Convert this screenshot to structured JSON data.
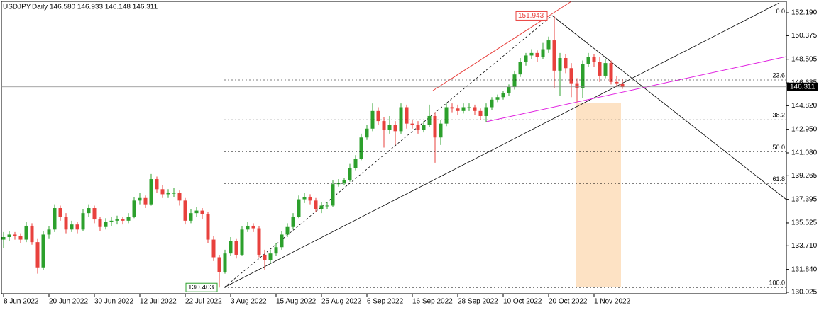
{
  "chart_data": {
    "type": "candlestick",
    "title": "USDJPY,Daily  146.580 146.933 146.148 146.311",
    "categories": [
      "8 Jun 2022",
      null,
      null,
      null,
      null,
      null,
      null,
      null,
      "20 Jun 2022",
      null,
      null,
      null,
      null,
      null,
      null,
      null,
      "30 Jun 2022",
      null,
      null,
      null,
      null,
      null,
      null,
      null,
      "12 Jul 2022",
      null,
      null,
      null,
      null,
      null,
      null,
      null,
      "22 Jul 2022",
      null,
      null,
      null,
      null,
      null,
      null,
      null,
      "3 Aug 2022",
      null,
      null,
      null,
      null,
      null,
      null,
      null,
      "15 Aug 2022",
      null,
      null,
      null,
      null,
      null,
      null,
      null,
      "25 Aug 2022",
      null,
      null,
      null,
      null,
      null,
      null,
      null,
      "6 Sep 2022",
      null,
      null,
      null,
      null,
      null,
      null,
      null,
      "16 Sep 2022",
      null,
      null,
      null,
      null,
      null,
      null,
      null,
      "28 Sep 2022",
      null,
      null,
      null,
      null,
      null,
      null,
      null,
      "10 Oct 2022",
      null,
      null,
      null,
      null,
      null,
      null,
      null,
      "20 Oct 2022",
      null,
      null,
      null,
      null,
      null,
      null,
      null,
      "1 Nov 2022",
      null,
      null,
      null,
      null,
      null
    ],
    "candles": [
      [
        134.2,
        134.8,
        133.5,
        134.4
      ],
      [
        134.4,
        134.9,
        134.1,
        134.6
      ],
      [
        134.6,
        134.8,
        134.2,
        134.5
      ],
      [
        134.5,
        134.7,
        133.9,
        134.2
      ],
      [
        134.2,
        135.6,
        134.0,
        135.3
      ],
      [
        135.3,
        135.5,
        133.8,
        134.0
      ],
      [
        134.0,
        134.3,
        131.5,
        132.0
      ],
      [
        132.0,
        134.9,
        131.8,
        134.6
      ],
      [
        134.6,
        135.3,
        134.3,
        135.0
      ],
      [
        135.0,
        137.0,
        134.8,
        136.7
      ],
      [
        136.7,
        136.9,
        135.7,
        136.0
      ],
      [
        136.0,
        136.3,
        134.7,
        135.0
      ],
      [
        135.0,
        135.7,
        134.8,
        135.4
      ],
      [
        135.4,
        135.6,
        134.7,
        135.0
      ],
      [
        135.0,
        136.6,
        134.9,
        136.3
      ],
      [
        136.3,
        137.0,
        136.0,
        136.7
      ],
      [
        136.7,
        136.9,
        135.5,
        135.8
      ],
      [
        135.8,
        136.0,
        134.9,
        135.2
      ],
      [
        135.2,
        135.9,
        135.0,
        135.6
      ],
      [
        135.6,
        136.0,
        135.3,
        135.7
      ],
      [
        135.7,
        136.1,
        135.4,
        135.8
      ],
      [
        135.8,
        136.0,
        135.4,
        135.7
      ],
      [
        135.7,
        136.3,
        135.5,
        136.0
      ],
      [
        136.0,
        137.6,
        135.9,
        137.3
      ],
      [
        137.3,
        137.9,
        137.0,
        137.5
      ],
      [
        137.5,
        137.7,
        136.7,
        137.0
      ],
      [
        137.0,
        139.4,
        136.9,
        139.0
      ],
      [
        139.0,
        139.2,
        137.9,
        138.2
      ],
      [
        138.2,
        138.5,
        137.5,
        137.8
      ],
      [
        137.8,
        138.2,
        137.5,
        137.9
      ],
      [
        137.9,
        138.3,
        137.6,
        137.9
      ],
      [
        137.9,
        138.1,
        136.9,
        137.3
      ],
      [
        137.3,
        137.5,
        135.4,
        135.7
      ],
      [
        135.7,
        136.6,
        135.5,
        136.3
      ],
      [
        136.3,
        136.8,
        136.0,
        136.5
      ],
      [
        136.5,
        136.7,
        135.8,
        136.2
      ],
      [
        136.2,
        136.4,
        133.9,
        134.2
      ],
      [
        134.2,
        134.5,
        132.5,
        132.8
      ],
      [
        132.8,
        133.0,
        130.403,
        131.6
      ],
      [
        131.6,
        133.4,
        131.5,
        133.1
      ],
      [
        133.1,
        134.4,
        132.9,
        134.1
      ],
      [
        134.1,
        134.3,
        132.7,
        133.0
      ],
      [
        133.0,
        135.3,
        132.9,
        135.0
      ],
      [
        135.0,
        135.6,
        134.8,
        135.3
      ],
      [
        135.3,
        135.5,
        134.8,
        135.1
      ],
      [
        135.1,
        135.3,
        132.8,
        133.0
      ],
      [
        133.0,
        133.4,
        131.8,
        132.6
      ],
      [
        132.6,
        133.4,
        132.3,
        133.1
      ],
      [
        133.1,
        133.9,
        132.9,
        133.6
      ],
      [
        133.6,
        134.9,
        133.4,
        134.6
      ],
      [
        134.6,
        135.5,
        134.4,
        135.2
      ],
      [
        135.2,
        136.3,
        135.0,
        136.0
      ],
      [
        136.0,
        137.7,
        135.9,
        137.4
      ],
      [
        137.4,
        137.9,
        137.1,
        137.6
      ],
      [
        137.6,
        137.8,
        137.0,
        137.3
      ],
      [
        137.3,
        137.5,
        136.4,
        136.6
      ],
      [
        136.6,
        137.2,
        136.3,
        136.9
      ],
      [
        136.9,
        137.2,
        136.6,
        136.9
      ],
      [
        136.9,
        138.9,
        136.8,
        138.6
      ],
      [
        138.6,
        139.0,
        138.4,
        138.7
      ],
      [
        138.7,
        139.1,
        138.5,
        138.9
      ],
      [
        138.9,
        140.2,
        138.8,
        139.9
      ],
      [
        139.9,
        140.9,
        139.7,
        140.6
      ],
      [
        140.6,
        142.6,
        140.5,
        142.3
      ],
      [
        142.3,
        143.3,
        142.1,
        143.0
      ],
      [
        143.0,
        145.0,
        142.8,
        144.4
      ],
      [
        144.4,
        144.7,
        143.3,
        143.6
      ],
      [
        143.6,
        143.9,
        141.5,
        142.9
      ],
      [
        142.9,
        144.0,
        142.6,
        143.3
      ],
      [
        143.3,
        143.6,
        141.7,
        142.8
      ],
      [
        142.8,
        145.0,
        142.6,
        144.7
      ],
      [
        144.7,
        144.9,
        143.0,
        143.4
      ],
      [
        143.4,
        143.7,
        143.0,
        143.3
      ],
      [
        143.3,
        143.6,
        142.6,
        142.9
      ],
      [
        142.9,
        143.6,
        142.7,
        143.3
      ],
      [
        143.3,
        144.9,
        143.1,
        144.0
      ],
      [
        144.0,
        144.3,
        140.3,
        142.3
      ],
      [
        142.3,
        143.7,
        141.7,
        143.4
      ],
      [
        143.4,
        145.0,
        143.2,
        144.7
      ],
      [
        144.7,
        145.0,
        144.3,
        144.6
      ],
      [
        144.6,
        144.9,
        144.1,
        144.4
      ],
      [
        144.4,
        145.0,
        144.2,
        144.7
      ],
      [
        144.7,
        145.0,
        144.4,
        144.7
      ],
      [
        144.7,
        144.9,
        144.1,
        144.4
      ],
      [
        144.4,
        144.6,
        143.7,
        144.0
      ],
      [
        144.0,
        145.0,
        143.5,
        144.7
      ],
      [
        144.7,
        145.5,
        144.5,
        145.3
      ],
      [
        145.3,
        145.7,
        145.1,
        145.5
      ],
      [
        145.5,
        146.0,
        145.3,
        145.8
      ],
      [
        145.8,
        146.5,
        145.6,
        146.3
      ],
      [
        146.3,
        147.6,
        146.1,
        147.3
      ],
      [
        147.3,
        148.6,
        147.1,
        148.3
      ],
      [
        148.3,
        149.0,
        148.0,
        148.8
      ],
      [
        148.8,
        149.3,
        148.5,
        149.0
      ],
      [
        149.0,
        149.2,
        148.3,
        148.7
      ],
      [
        148.7,
        149.8,
        148.5,
        149.3
      ],
      [
        149.3,
        150.3,
        149.0,
        150.0
      ],
      [
        150.0,
        151.943,
        146.2,
        147.6
      ],
      [
        147.6,
        149.0,
        145.6,
        148.6
      ],
      [
        148.6,
        148.9,
        147.4,
        147.8
      ],
      [
        147.8,
        148.2,
        145.5,
        146.6
      ],
      [
        146.6,
        147.0,
        145.1,
        146.2
      ],
      [
        146.2,
        148.4,
        145.4,
        148.1
      ],
      [
        148.1,
        149.0,
        147.9,
        148.7
      ],
      [
        148.7,
        148.9,
        147.9,
        148.3
      ],
      [
        148.3,
        148.7,
        146.7,
        147.2
      ],
      [
        147.2,
        148.5,
        147.0,
        148.2
      ],
      [
        148.2,
        148.4,
        146.5,
        146.7
      ],
      [
        146.7,
        147.2,
        146.3,
        146.6
      ],
      [
        146.58,
        146.933,
        146.148,
        146.311
      ]
    ],
    "up_color": "#2ca02c",
    "down_color": "#e8413d",
    "ylim": [
      129.91,
      153.09
    ],
    "yticks": [
      {
        "value": 152.19,
        "label": "152.190"
      },
      150.375,
      148.505,
      146.635,
      {
        "value": 144.82,
        "label": "144.820"
      },
      {
        "value": 142.95,
        "label": "142.950"
      },
      {
        "value": 141.08,
        "label": "141.080"
      },
      139.265,
      137.395,
      135.525,
      {
        "value": 133.71,
        "label": "133.710"
      },
      {
        "value": 131.84,
        "label": "131.840"
      },
      130.025
    ],
    "current_price": 146.311,
    "high_label": 151.943,
    "low_label": 130.403,
    "fib_levels": [
      {
        "label": "0.0",
        "value": 151.943
      },
      {
        "label": "23.6",
        "value": 146.86
      },
      {
        "label": "38.2",
        "value": 143.71
      },
      {
        "label": "50.0",
        "value": 141.17
      },
      {
        "label": "61.8",
        "value": 138.63
      },
      {
        "label": "100.0",
        "value": 130.403
      }
    ]
  }
}
